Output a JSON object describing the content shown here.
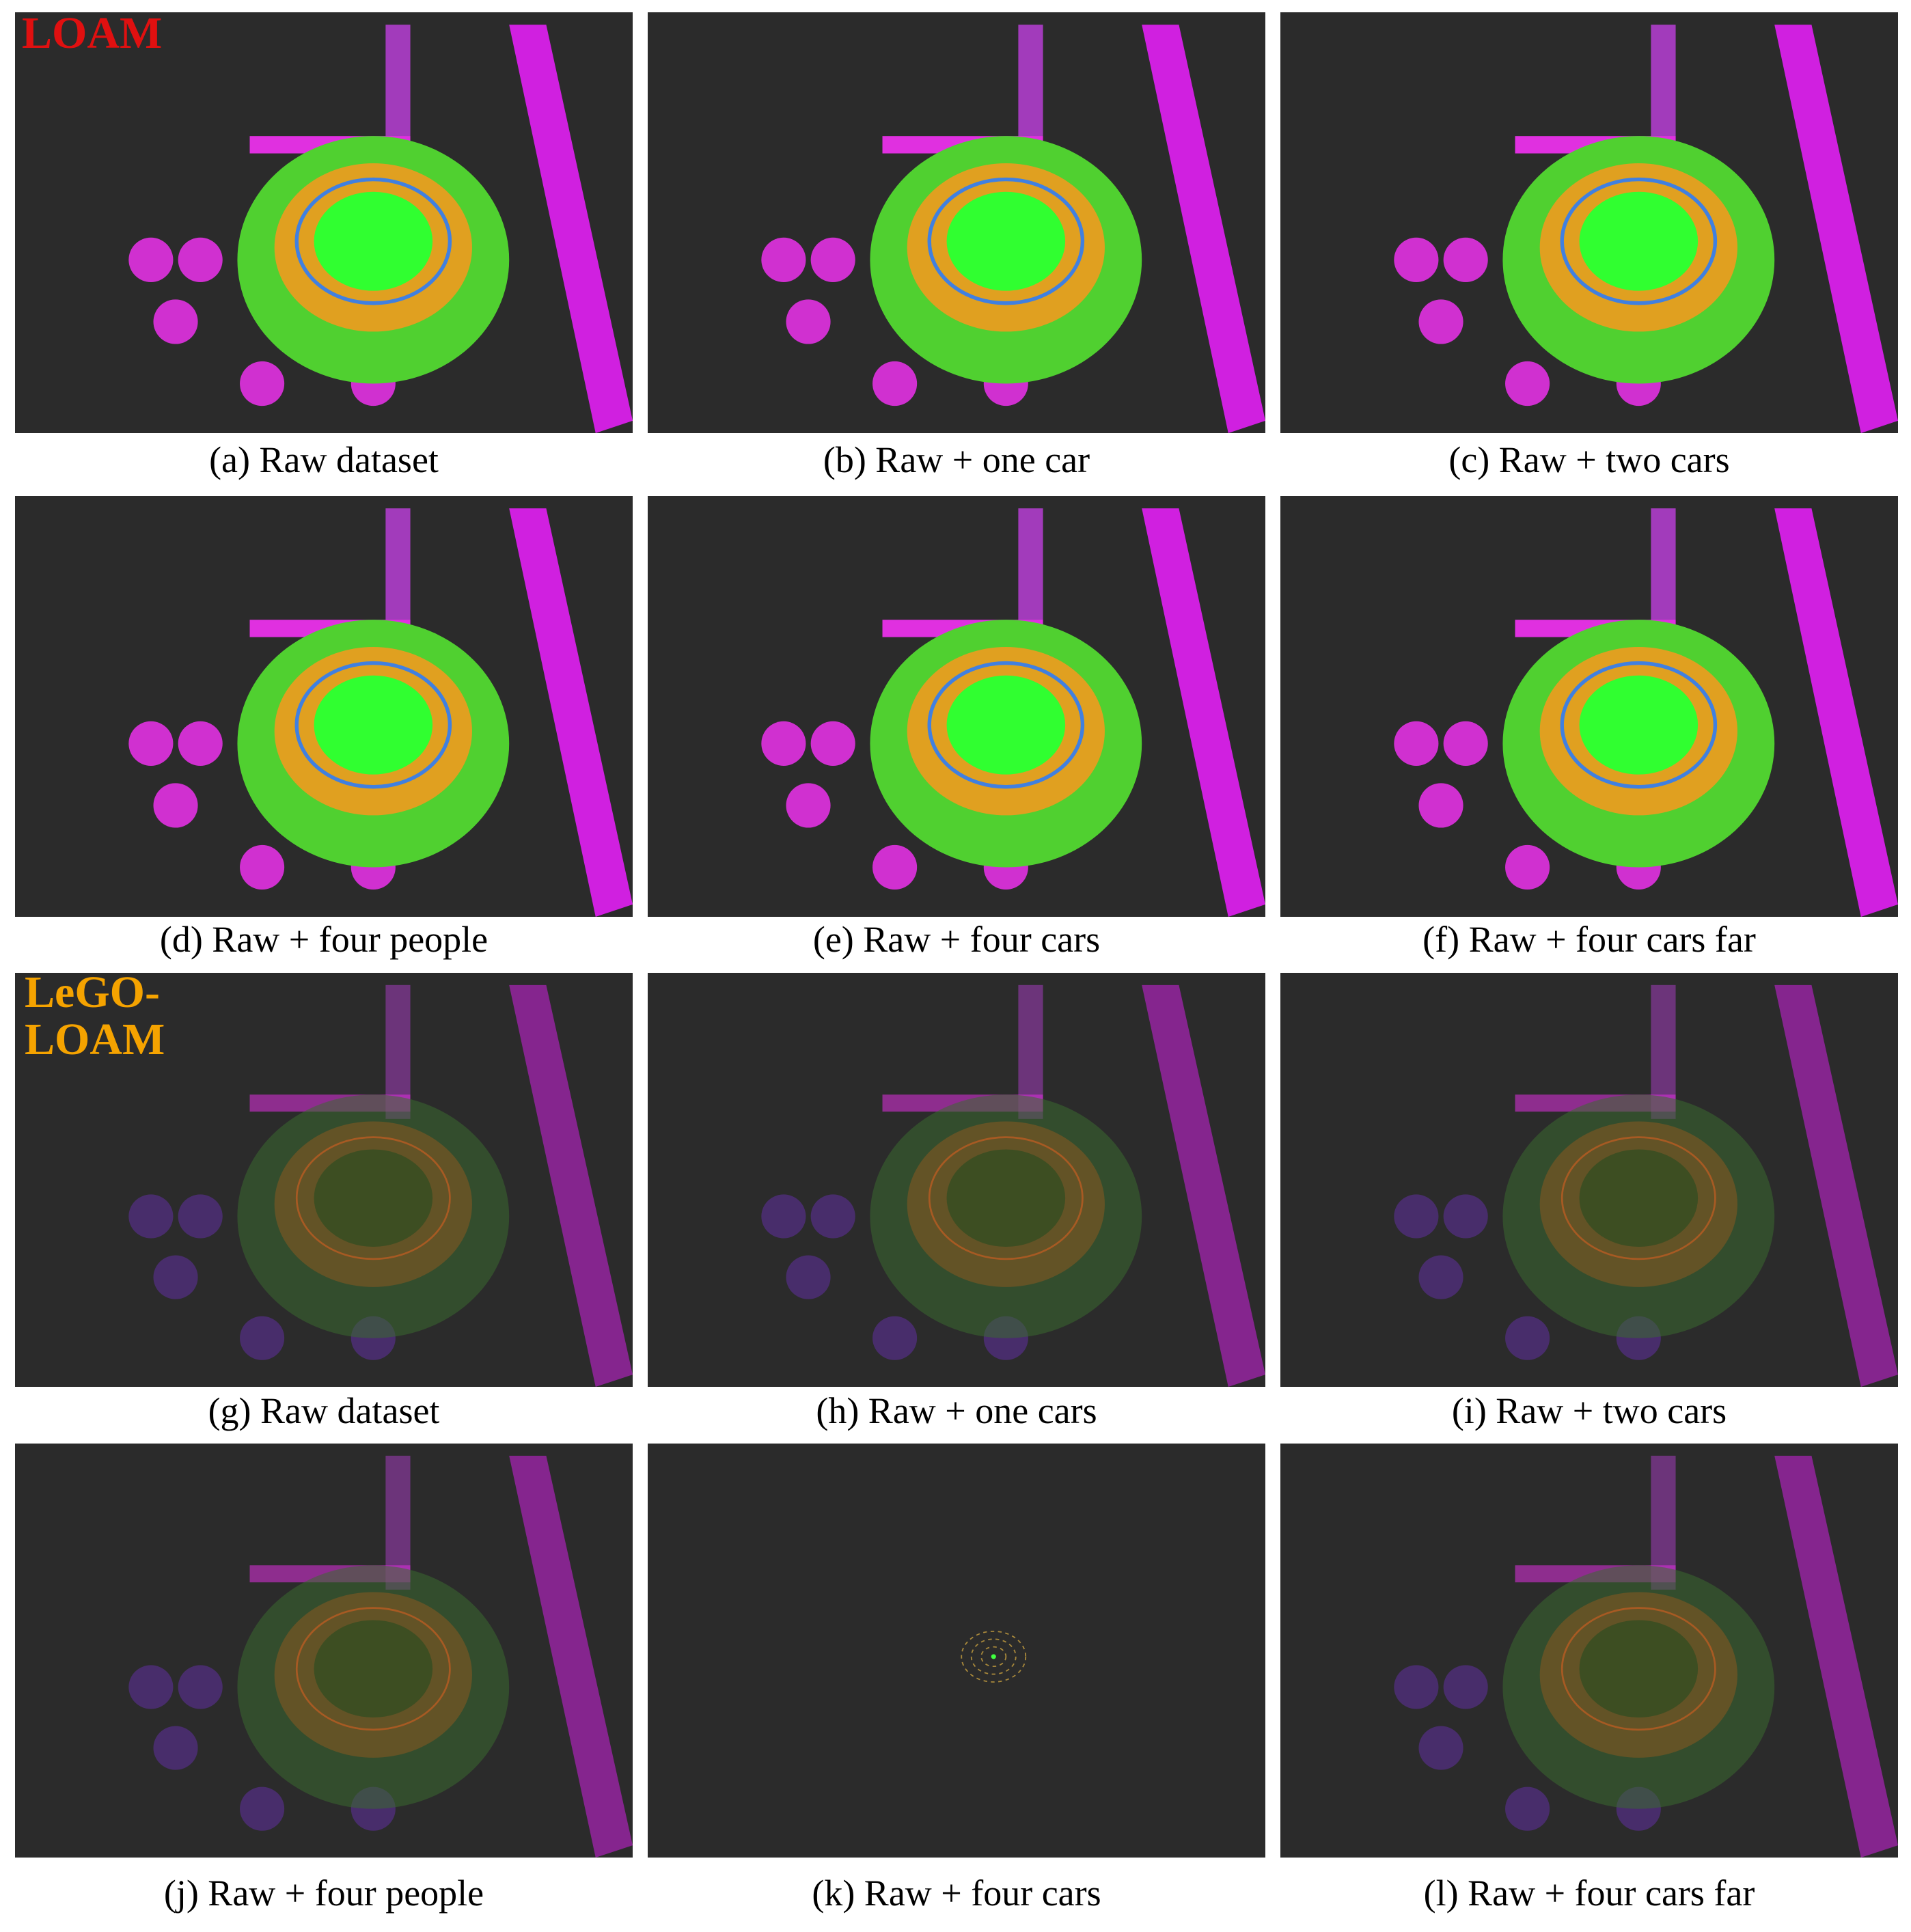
{
  "labels": {
    "loam": "LOAM",
    "lego_loam": [
      "LeGO-",
      "LOAM"
    ]
  },
  "panels": [
    {
      "caption": "(a) Raw dataset"
    },
    {
      "caption": "(b) Raw + one car"
    },
    {
      "caption": "(c) Raw + two cars"
    },
    {
      "caption": "(d) Raw + four people"
    },
    {
      "caption": "(e) Raw + four cars"
    },
    {
      "caption": "(f) Raw + four cars far"
    },
    {
      "caption": "(g) Raw dataset"
    },
    {
      "caption": "(h) Raw + one cars"
    },
    {
      "caption": "(i) Raw + two cars"
    },
    {
      "caption": "(j) Raw + four people"
    },
    {
      "caption": "(k) Raw + four cars"
    },
    {
      "caption": "(l) Raw + four cars far"
    }
  ]
}
